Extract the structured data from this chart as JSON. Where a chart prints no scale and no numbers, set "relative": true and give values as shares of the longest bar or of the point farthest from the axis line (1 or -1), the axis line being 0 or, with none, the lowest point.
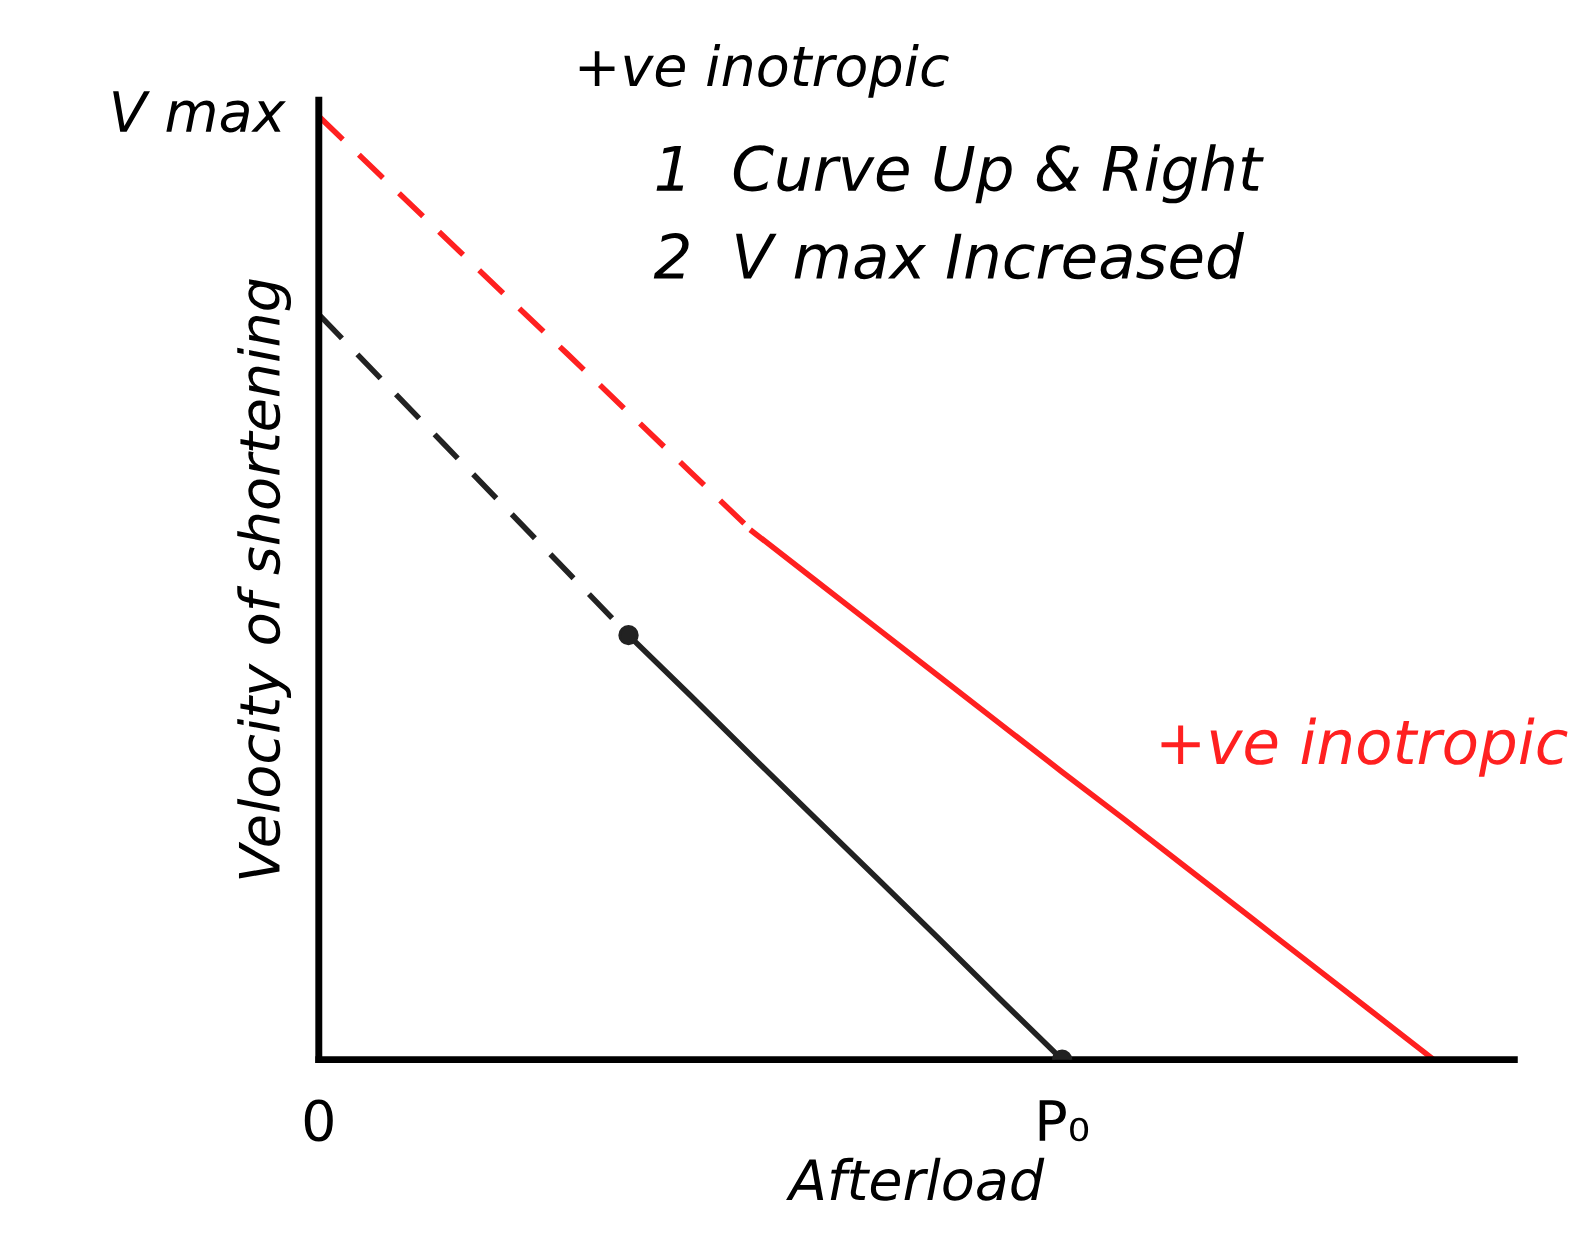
{
  "chart_data": {
    "type": "line",
    "relative": true,
    "title": "+ve inotropic",
    "xlabel": "Afterload",
    "ylabel": "Velocity of shortening",
    "categories": [
      "0",
      null,
      null,
      null,
      null,
      null,
      null,
      null,
      null,
      null,
      null,
      null,
      "P₀",
      null,
      null,
      null,
      null,
      null,
      null,
      null
    ],
    "grid": false,
    "legend": false,
    "series": [
      {
        "color": "#ff2020",
        "line_style": "dashed",
        "values": [
          1,
          0.937,
          0.874,
          0.811,
          0.749,
          0.686,
          0.623,
          0.56,
          null,
          null,
          null,
          null,
          null,
          null,
          null,
          null,
          null,
          null,
          null,
          null
        ]
      },
      {
        "name": "+ve inotropic",
        "color": "#ff2020",
        "line_style": "solid",
        "values": [
          null,
          null,
          null,
          null,
          null,
          null,
          null,
          0.56,
          0.509,
          0.458,
          0.407,
          0.356,
          0.305,
          0.255,
          0.204,
          0.153,
          0.102,
          0.051,
          0,
          null
        ]
      },
      {
        "color": "#222222",
        "line_style": "dashed",
        "values": [
          0.79,
          0.722,
          0.654,
          0.586,
          0.518,
          0.45,
          null,
          null,
          null,
          null,
          null,
          null,
          null,
          null,
          null,
          null,
          null,
          null,
          null,
          null
        ]
      },
      {
        "color": "#222222",
        "line_style": "solid",
        "values": [
          null,
          null,
          null,
          null,
          null,
          0.45,
          0.386,
          0.321,
          0.257,
          0.193,
          0.129,
          0.064,
          0,
          null,
          null,
          null,
          null,
          null,
          null,
          null
        ]
      },
      {
        "type": "scatter",
        "color": "#222222",
        "marker": "circle",
        "values": [
          null,
          null,
          null,
          null,
          null,
          0.45,
          null,
          null,
          null,
          null,
          null,
          null,
          0,
          null,
          null,
          null,
          null,
          null,
          null,
          null
        ]
      }
    ],
    "annotations": [
      {
        "text": "V max",
        "x": "0",
        "y": 1
      },
      "1  Curve Up & Right",
      "2  V max Increased"
    ]
  }
}
